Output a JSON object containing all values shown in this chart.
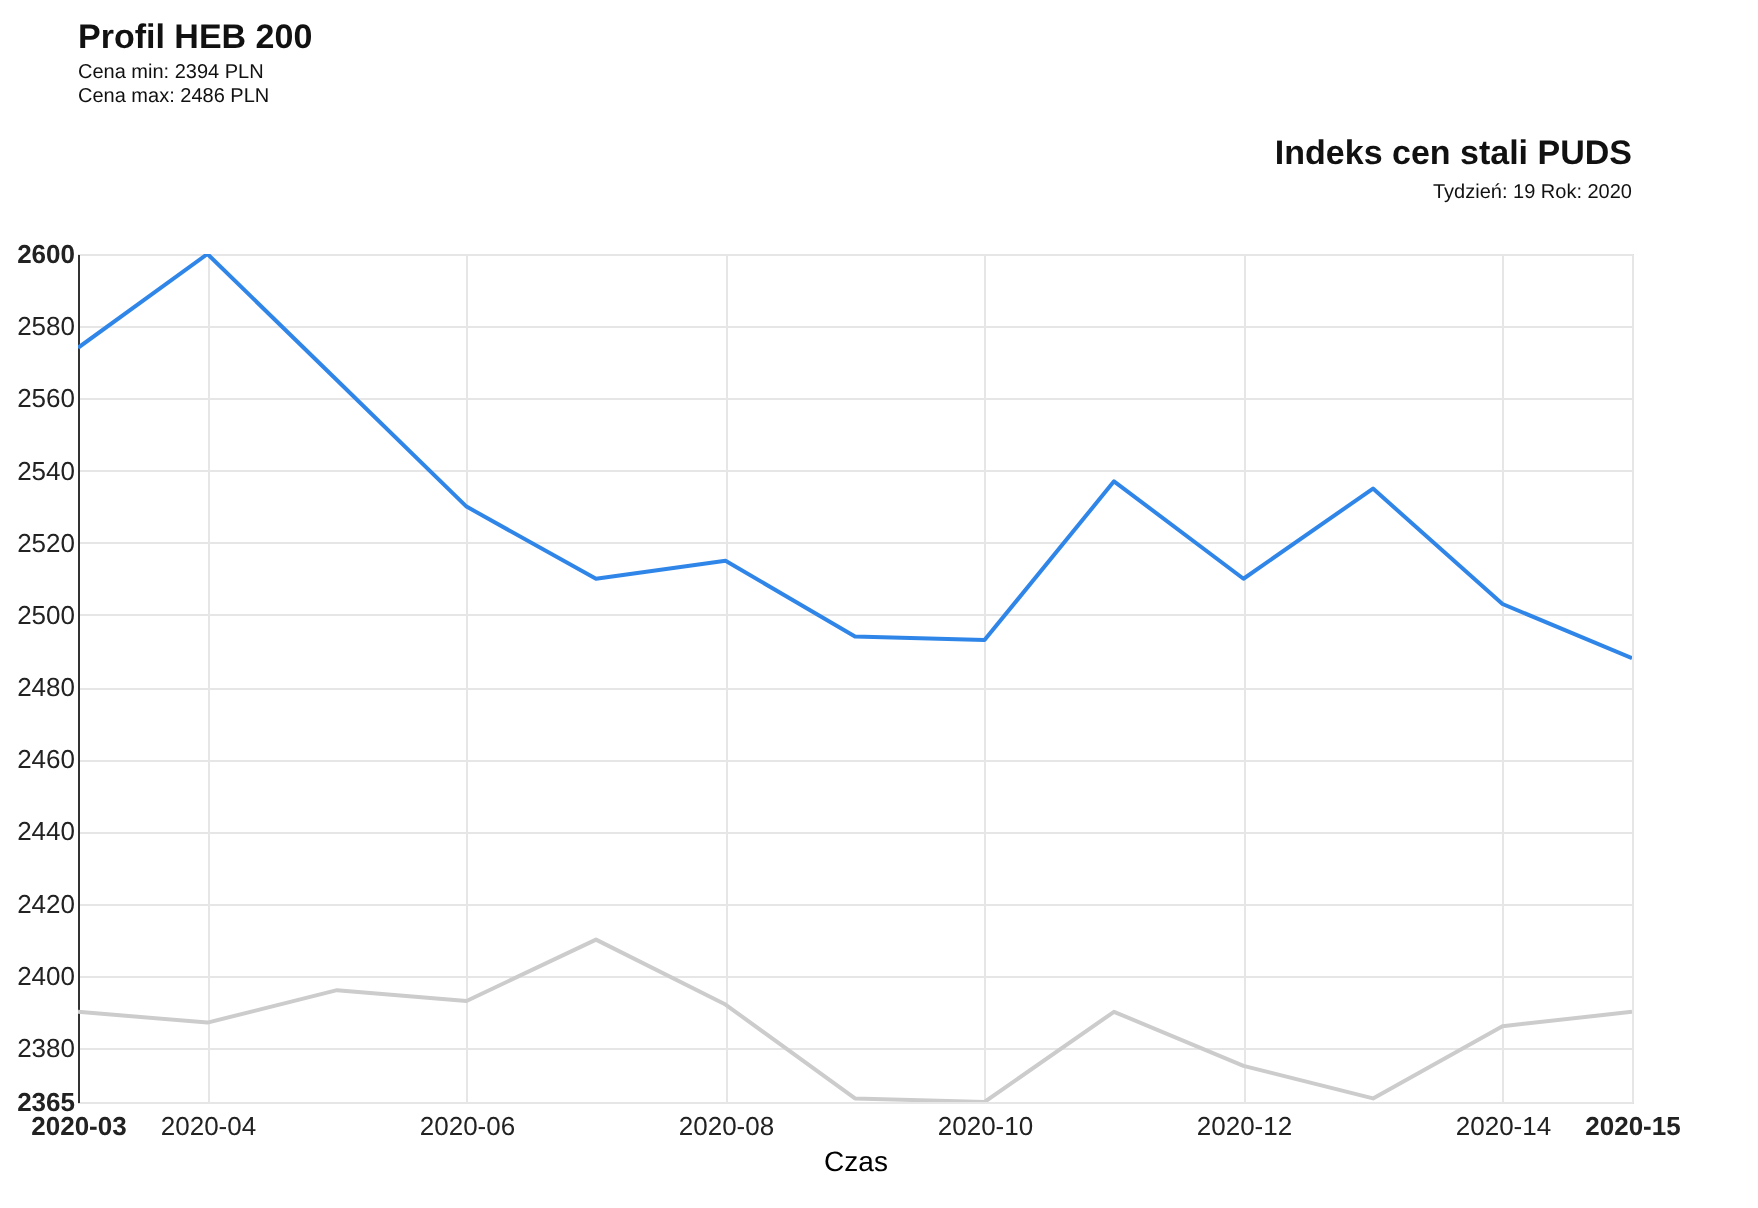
{
  "chart_data": {
    "type": "line",
    "title": "Profil HEB 200",
    "subtitle": [
      "Cena min: 2394 PLN",
      "Cena max: 2486 PLN"
    ],
    "xlabel": "Czas",
    "annotations": [
      "Indeks cen stali PUDS",
      "Tydzień: 19  Rok: 2020"
    ],
    "categories": [
      "2020-03",
      "2020-04",
      null,
      "2020-06",
      null,
      "2020-08",
      null,
      "2020-10",
      null,
      "2020-12",
      null,
      "2020-14",
      "2020-15"
    ],
    "series": [
      {
        "color": "#2f86e8",
        "values": [
          2574,
          2600,
          2565,
          2530,
          2510,
          2515,
          2494,
          2493,
          2537,
          2510,
          2535,
          2503,
          2488
        ]
      },
      {
        "color": "#cccccc",
        "values": [
          2390,
          2387,
          2396,
          2393,
          2410,
          2392,
          2366,
          2365,
          2390,
          2375,
          2366,
          2386,
          2390
        ]
      }
    ],
    "ylim": [
      2365,
      2600
    ],
    "yticks": [
      2365,
      2380,
      2400,
      2420,
      2440,
      2460,
      2480,
      2500,
      2520,
      2540,
      2560,
      2580,
      2600
    ],
    "grid": true,
    "legend": false,
    "marker": "none",
    "line_style": "solid"
  }
}
